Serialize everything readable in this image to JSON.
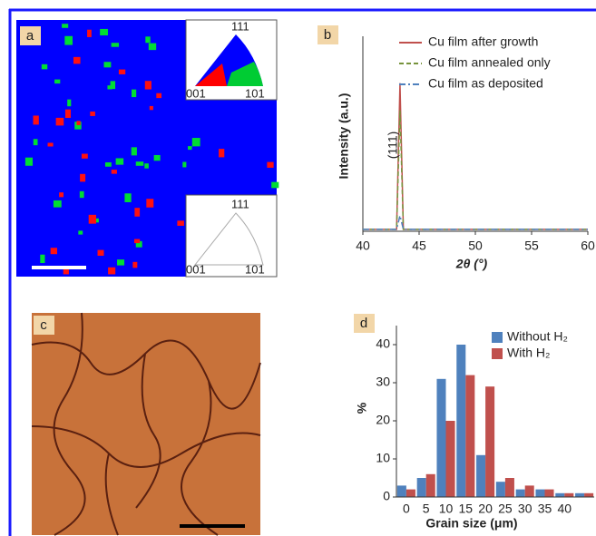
{
  "panels": {
    "a": "a",
    "c": "c"
  },
  "ebsd_inset": {
    "top": [
      "111",
      "001",
      "101"
    ],
    "bottom": [
      "111",
      "001",
      "101"
    ]
  },
  "chart_data": [
    {
      "type": "line",
      "label": "b",
      "x_label": "2θ (°)",
      "y_label": "Intensity (a.u.)",
      "annotation": "(111)",
      "xlim": [
        40,
        60
      ],
      "xticks": [
        40,
        45,
        50,
        55,
        60
      ],
      "ylim": [
        0,
        100
      ],
      "series": [
        {
          "name": "Cu film after growth",
          "color": "#c0504d",
          "dash": "solid",
          "x": [
            40,
            43,
            43.3,
            43.6,
            60
          ],
          "values": [
            1,
            1,
            76,
            1,
            1
          ]
        },
        {
          "name": "Cu film annealed only",
          "color": "#77933c",
          "dash": "dashed",
          "x": [
            40,
            43,
            43.3,
            43.6,
            60
          ],
          "values": [
            1,
            1,
            62,
            1,
            1
          ]
        },
        {
          "name": "Cu film as deposited",
          "color": "#4f81bd",
          "dash": "dashdot",
          "x": [
            40,
            43,
            43.3,
            43.6,
            60
          ],
          "values": [
            1,
            1,
            8,
            1,
            1
          ]
        }
      ]
    },
    {
      "type": "bar",
      "label": "d",
      "x_label": "Grain size (μm)",
      "y_label": "%",
      "categories": [
        "0",
        "5",
        "10",
        "15",
        "20",
        "25",
        "30",
        "35",
        "40",
        null
      ],
      "ylim": [
        0,
        45
      ],
      "yticks": [
        0,
        10,
        20,
        30,
        40
      ],
      "series": [
        {
          "name": "Without H₂",
          "color": "#4f81bd",
          "values": [
            3,
            5,
            31,
            40,
            11,
            4,
            2,
            2,
            1,
            1
          ]
        },
        {
          "name": "With H₂",
          "color": "#c0504d",
          "values": [
            2,
            6,
            20,
            32,
            29,
            5,
            3,
            2,
            1,
            1
          ]
        }
      ]
    }
  ]
}
